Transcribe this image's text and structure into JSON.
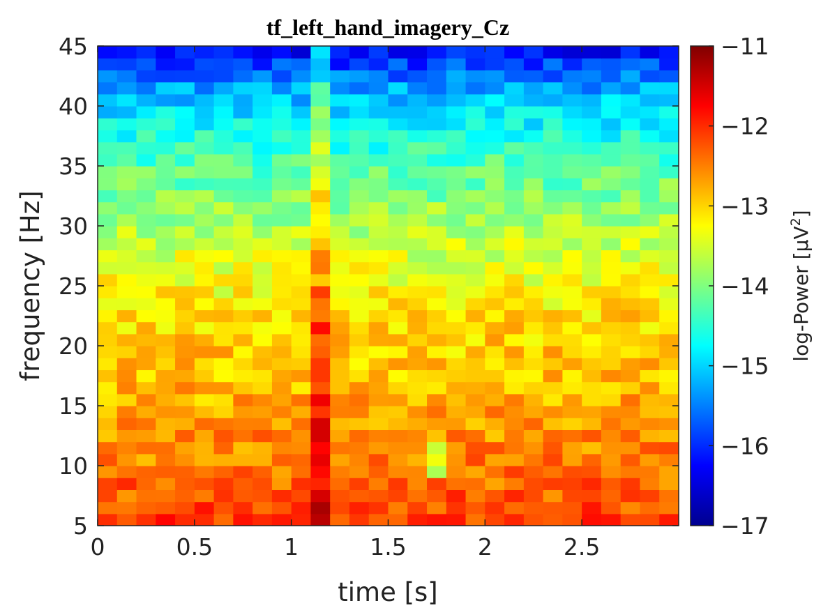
{
  "chart_data": {
    "type": "heatmap",
    "title": "tf_left_hand_imagery_Cz",
    "xlabel": "time [s]",
    "ylabel": "frequency [Hz]",
    "xlim": [
      0,
      3
    ],
    "ylim": [
      5,
      45
    ],
    "xticks": [
      "0",
      "0.5",
      "1",
      "1.5",
      "2",
      "2.5"
    ],
    "yticks": [
      "5",
      "10",
      "15",
      "20",
      "25",
      "30",
      "35",
      "40",
      "45"
    ],
    "colorbar": {
      "label": "log-Power [µV²]",
      "label_prefix": "log-Power [µV",
      "label_sup": "2",
      "label_suffix": "]",
      "range": [
        -17,
        -11
      ],
      "ticks": [
        "−11",
        "−12",
        "−13",
        "−14",
        "−15",
        "−16",
        "−17"
      ],
      "colormap": "jet"
    },
    "grid": {
      "time_bins": 30,
      "time_step_s": 0.1,
      "freq_bins": 40,
      "freq_step_hz": 1,
      "freq_start_hz": 5
    },
    "approx_profile": {
      "freq_hz": [
        5,
        8,
        10,
        12,
        15,
        18,
        20,
        22,
        25,
        28,
        30,
        32,
        35,
        38,
        40,
        42,
        45
      ],
      "log_power": [
        -12.1,
        -12.3,
        -12.5,
        -12.55,
        -12.75,
        -12.9,
        -12.95,
        -13.0,
        -13.3,
        -13.5,
        -13.7,
        -13.95,
        -14.25,
        -14.65,
        -15.0,
        -15.4,
        -16.3
      ]
    },
    "notable_features": [
      {
        "label": "broadband vertical burst near",
        "time_s": 1.15,
        "delta_log_power": 1.0
      },
      {
        "label": "localized dip",
        "time_s": 1.75,
        "freq_hz": 10.5,
        "delta_log_power": -1.1
      }
    ]
  }
}
